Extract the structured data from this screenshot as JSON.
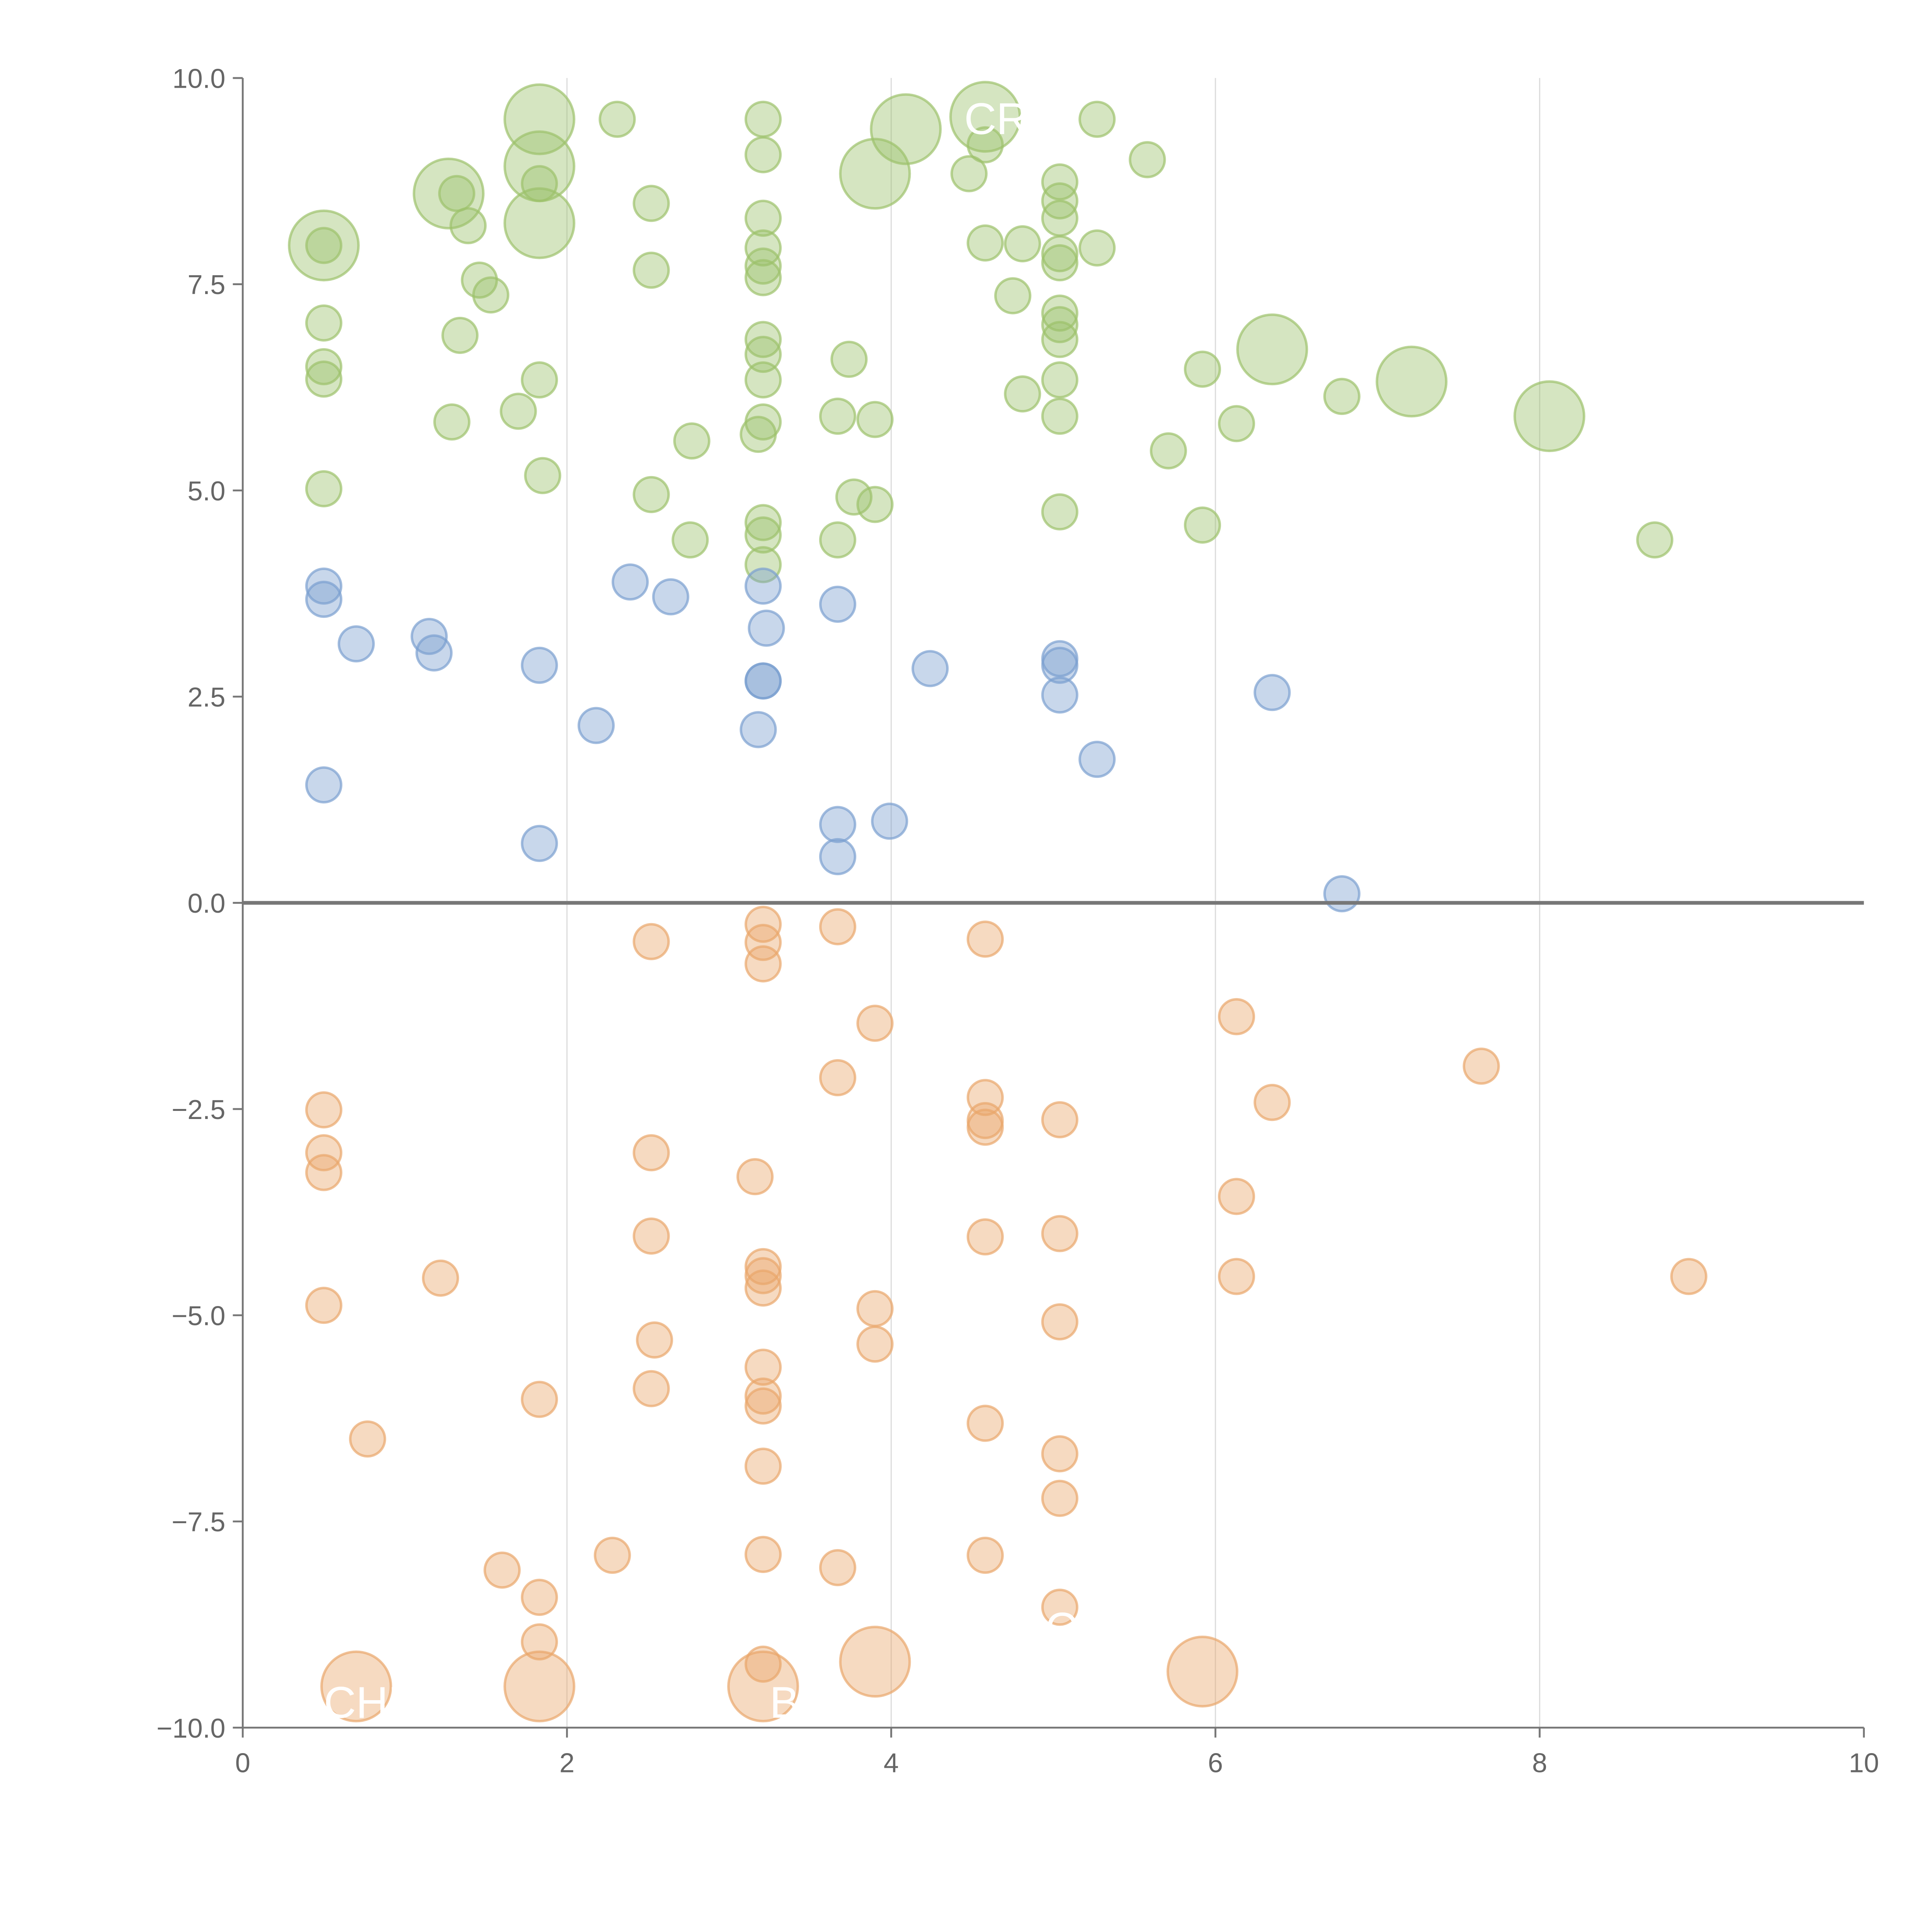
{
  "chart_data": {
    "type": "scatter",
    "title": "",
    "xlabel": "",
    "ylabel": "",
    "xlim": [
      0,
      10
    ],
    "ylim": [
      -10,
      10
    ],
    "x_ticks": [
      "0",
      "2",
      "4",
      "6",
      "8",
      "10"
    ],
    "y_ticks": [
      "−10.0",
      "−7.5",
      "−5.0",
      "−2.5",
      "0.0",
      "2.5",
      "5.0",
      "7.5",
      "10.0"
    ],
    "grid": "vertical at x=2,4,6,8",
    "reference_line_y": 0,
    "point_format": "[x, y, size]",
    "series": [
      {
        "name": "green",
        "color": "#9cc26b",
        "points": [
          [
            1.83,
            9.5,
            4
          ],
          [
            1.83,
            8.93,
            4
          ],
          [
            1.83,
            8.24,
            4
          ],
          [
            0.5,
            7.97,
            4
          ],
          [
            1.27,
            8.6,
            4
          ],
          [
            4.09,
            9.38,
            4
          ],
          [
            3.9,
            8.84,
            4
          ],
          [
            4.58,
            9.53,
            4
          ],
          [
            6.35,
            6.71,
            4
          ],
          [
            7.21,
            6.32,
            4
          ],
          [
            8.06,
            5.9,
            4
          ],
          [
            2.31,
            9.5,
            1
          ],
          [
            1.32,
            8.6,
            1
          ],
          [
            1.83,
            8.72,
            1
          ],
          [
            1.39,
            8.21,
            1
          ],
          [
            1.46,
            7.55,
            1
          ],
          [
            1.53,
            7.37,
            1
          ],
          [
            0.5,
            7.97,
            1
          ],
          [
            0.5,
            7.03,
            1
          ],
          [
            0.5,
            6.5,
            1
          ],
          [
            0.5,
            6.35,
            1
          ],
          [
            1.34,
            6.88,
            1
          ],
          [
            0.5,
            5.02,
            1
          ],
          [
            1.29,
            5.83,
            1
          ],
          [
            1.7,
            5.96,
            1
          ],
          [
            1.83,
            6.34,
            1
          ],
          [
            1.85,
            5.18,
            1
          ],
          [
            2.52,
            8.48,
            1
          ],
          [
            2.52,
            7.67,
            1
          ],
          [
            2.52,
            4.95,
            1
          ],
          [
            2.76,
            4.4,
            1
          ],
          [
            2.77,
            5.6,
            1
          ],
          [
            3.21,
            9.5,
            1
          ],
          [
            3.21,
            9.07,
            1
          ],
          [
            3.21,
            8.3,
            1
          ],
          [
            3.21,
            7.94,
            1
          ],
          [
            3.21,
            7.72,
            1
          ],
          [
            3.21,
            7.58,
            1
          ],
          [
            3.21,
            6.83,
            1
          ],
          [
            3.21,
            6.65,
            1
          ],
          [
            3.21,
            6.34,
            1
          ],
          [
            3.21,
            5.83,
            1
          ],
          [
            3.18,
            5.68,
            1
          ],
          [
            3.21,
            4.61,
            1
          ],
          [
            3.21,
            4.46,
            1
          ],
          [
            3.21,
            4.1,
            1
          ],
          [
            3.74,
            6.59,
            1
          ],
          [
            3.67,
            5.9,
            1
          ],
          [
            3.9,
            5.86,
            1
          ],
          [
            3.77,
            4.92,
            1
          ],
          [
            3.9,
            4.83,
            1
          ],
          [
            3.67,
            4.4,
            1
          ],
          [
            4.48,
            8.84,
            1
          ],
          [
            4.58,
            9.19,
            1
          ],
          [
            4.58,
            8.0,
            1
          ],
          [
            4.81,
            7.99,
            1
          ],
          [
            4.75,
            7.36,
            1
          ],
          [
            4.81,
            6.17,
            1
          ],
          [
            5.04,
            8.74,
            1
          ],
          [
            5.04,
            8.51,
            1
          ],
          [
            5.04,
            8.3,
            1
          ],
          [
            5.04,
            7.87,
            1
          ],
          [
            5.04,
            7.76,
            1
          ],
          [
            5.04,
            7.15,
            1
          ],
          [
            5.04,
            7.01,
            1
          ],
          [
            5.04,
            6.83,
            1
          ],
          [
            5.04,
            6.34,
            1
          ],
          [
            5.04,
            5.9,
            1
          ],
          [
            5.04,
            4.74,
            1
          ],
          [
            5.27,
            9.5,
            1
          ],
          [
            5.27,
            7.94,
            1
          ],
          [
            5.58,
            9.01,
            1
          ],
          [
            5.92,
            6.47,
            1
          ],
          [
            5.71,
            5.48,
            1
          ],
          [
            6.13,
            5.81,
            1
          ],
          [
            5.92,
            4.58,
            1
          ],
          [
            6.78,
            6.14,
            1
          ],
          [
            8.71,
            4.4,
            1
          ]
        ]
      },
      {
        "name": "blue",
        "color": "#7b9fd0",
        "points": [
          [
            0.5,
            3.84,
            1
          ],
          [
            0.5,
            3.68,
            1
          ],
          [
            0.7,
            3.14,
            1
          ],
          [
            1.15,
            3.23,
            1
          ],
          [
            1.18,
            3.03,
            1
          ],
          [
            1.83,
            2.88,
            1
          ],
          [
            2.39,
            3.89,
            1
          ],
          [
            2.64,
            3.71,
            1
          ],
          [
            2.18,
            2.15,
            1
          ],
          [
            3.21,
            3.84,
            1
          ],
          [
            3.23,
            3.33,
            1
          ],
          [
            3.21,
            2.69,
            1
          ],
          [
            3.21,
            2.69,
            1
          ],
          [
            3.18,
            2.1,
            1
          ],
          [
            3.67,
            3.62,
            1
          ],
          [
            4.24,
            2.84,
            1
          ],
          [
            5.04,
            2.96,
            1
          ],
          [
            5.04,
            2.88,
            1
          ],
          [
            5.04,
            2.52,
            1
          ],
          [
            5.27,
            1.74,
            1
          ],
          [
            6.35,
            2.55,
            1
          ],
          [
            0.5,
            1.43,
            1
          ],
          [
            1.83,
            0.72,
            1
          ],
          [
            3.67,
            0.95,
            1
          ],
          [
            3.67,
            0.56,
            1
          ],
          [
            3.99,
            0.99,
            1
          ],
          [
            6.78,
            0.11,
            1
          ]
        ]
      },
      {
        "name": "orange",
        "color": "#e9a66b",
        "points": [
          [
            0.5,
            -2.51,
            1
          ],
          [
            0.5,
            -3.03,
            1
          ],
          [
            0.5,
            -3.27,
            1
          ],
          [
            0.5,
            -4.88,
            1
          ],
          [
            0.77,
            -6.5,
            1
          ],
          [
            1.22,
            -4.55,
            1
          ],
          [
            1.6,
            -8.09,
            1
          ],
          [
            1.83,
            -6.02,
            1
          ],
          [
            1.83,
            -8.42,
            1
          ],
          [
            1.83,
            -8.96,
            1
          ],
          [
            2.28,
            -7.91,
            1
          ],
          [
            2.52,
            -0.47,
            1
          ],
          [
            2.52,
            -3.03,
            1
          ],
          [
            2.52,
            -4.04,
            1
          ],
          [
            2.54,
            -5.3,
            1
          ],
          [
            2.52,
            -5.89,
            1
          ],
          [
            3.21,
            -0.26,
            1
          ],
          [
            3.21,
            -0.48,
            1
          ],
          [
            3.21,
            -0.74,
            1
          ],
          [
            3.16,
            -3.32,
            1
          ],
          [
            3.21,
            -4.41,
            1
          ],
          [
            3.21,
            -4.52,
            1
          ],
          [
            3.21,
            -4.67,
            1
          ],
          [
            3.21,
            -5.63,
            1
          ],
          [
            3.21,
            -5.98,
            1
          ],
          [
            3.21,
            -6.1,
            1
          ],
          [
            3.21,
            -6.83,
            1
          ],
          [
            3.21,
            -7.9,
            1
          ],
          [
            3.21,
            -9.23,
            1
          ],
          [
            3.67,
            -0.29,
            1
          ],
          [
            3.67,
            -2.12,
            1
          ],
          [
            3.67,
            -8.06,
            1
          ],
          [
            3.9,
            -1.46,
            1
          ],
          [
            3.9,
            -4.92,
            1
          ],
          [
            3.9,
            -5.35,
            1
          ],
          [
            4.58,
            -0.44,
            1
          ],
          [
            4.58,
            -2.36,
            1
          ],
          [
            4.58,
            -2.64,
            1
          ],
          [
            4.58,
            -2.72,
            1
          ],
          [
            4.58,
            -4.05,
            1
          ],
          [
            4.58,
            -6.31,
            1
          ],
          [
            4.58,
            -7.91,
            1
          ],
          [
            5.04,
            -2.63,
            1
          ],
          [
            5.04,
            -4.01,
            1
          ],
          [
            5.04,
            -5.08,
            1
          ],
          [
            5.04,
            -6.68,
            1
          ],
          [
            5.04,
            -7.22,
            1
          ],
          [
            5.04,
            -8.54,
            1
          ],
          [
            6.13,
            -1.38,
            1
          ],
          [
            6.13,
            -3.56,
            1
          ],
          [
            6.13,
            -4.53,
            1
          ],
          [
            6.35,
            -2.42,
            1
          ],
          [
            7.64,
            -1.98,
            1
          ],
          [
            8.92,
            -4.53,
            1
          ],
          [
            0.7,
            -9.5,
            4
          ],
          [
            1.83,
            -9.5,
            4
          ],
          [
            3.21,
            -9.5,
            4
          ],
          [
            3.9,
            -9.2,
            4
          ],
          [
            5.92,
            -9.32,
            4
          ]
        ]
      }
    ],
    "annotations": [
      {
        "text": "CR",
        "x": 4.45,
        "y": 9.5
      },
      {
        "text": "CHF",
        "x": 0.5,
        "y": -9.7
      },
      {
        "text": "BW",
        "x": 3.25,
        "y": -9.7
      },
      {
        "text": "C",
        "x": 4.95,
        "y": -8.8
      }
    ]
  }
}
